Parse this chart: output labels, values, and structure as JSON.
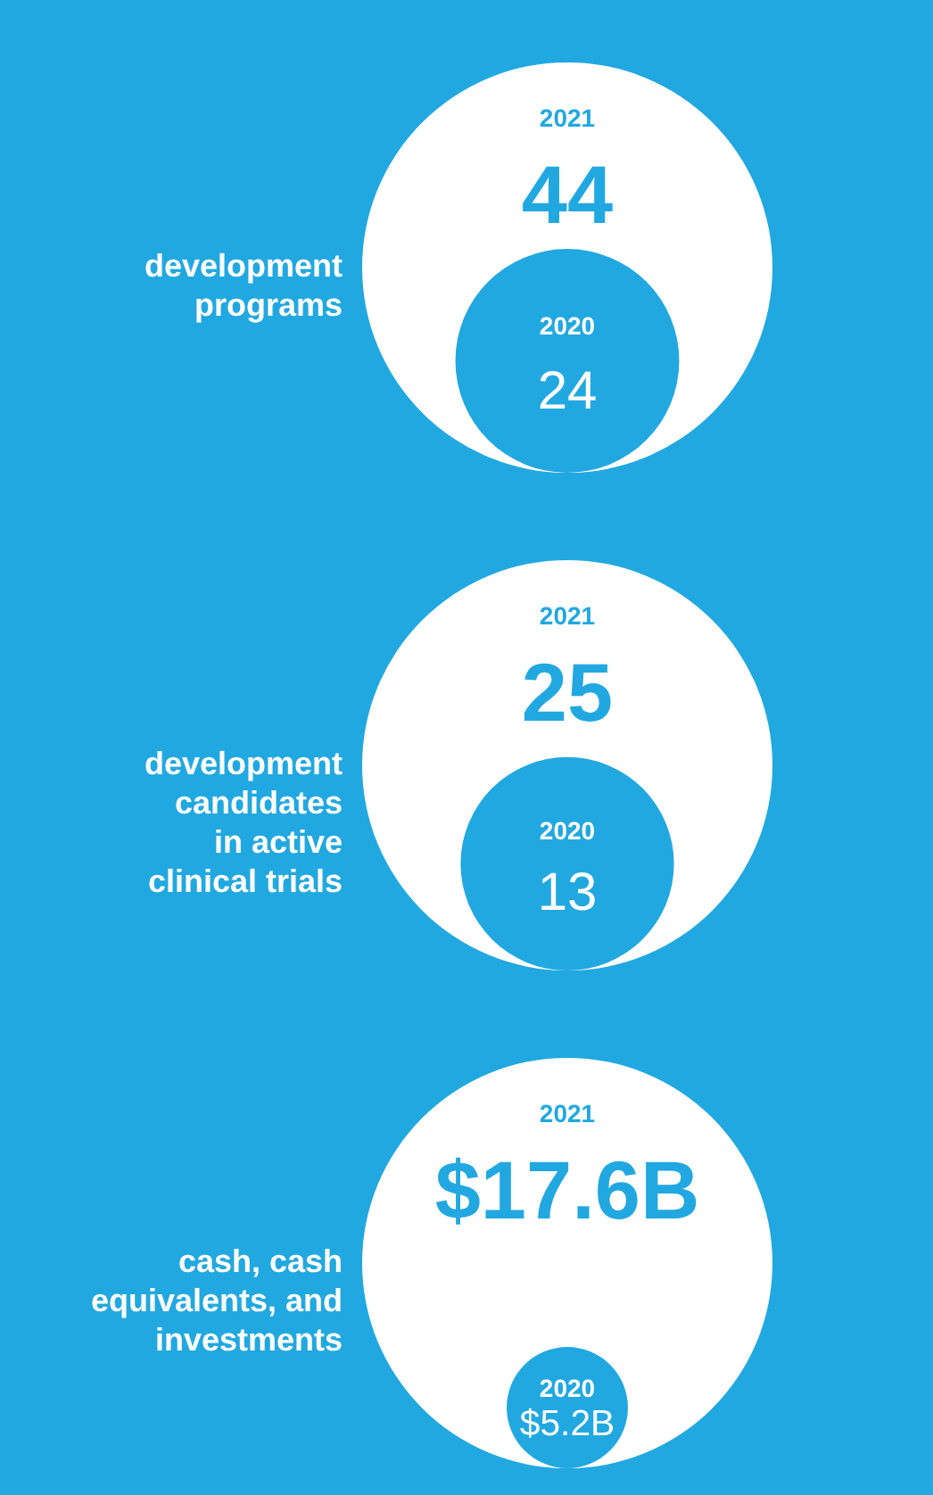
{
  "chart_data": [
    {
      "type": "other",
      "title": "development\nprograms",
      "categories": [
        "2021",
        "2020"
      ],
      "values": [
        44,
        24
      ],
      "colors": [
        "#ffffff",
        "#22a8e0"
      ],
      "data_labels": true
    },
    {
      "type": "other",
      "title": "development\ncandidates\nin active\nclinical trials",
      "categories": [
        "2021",
        "2020"
      ],
      "values": [
        25,
        13
      ],
      "colors": [
        "#ffffff",
        "#22a8e0"
      ],
      "data_labels": true
    },
    {
      "type": "other",
      "title": "cash, cash\nequivalents, and\ninvestments",
      "categories": [
        "2021",
        "2020"
      ],
      "values": [
        17.6,
        5.2
      ],
      "value_labels": [
        "$17.6B",
        "$5.2B"
      ],
      "colors": [
        "#ffffff",
        "#22a8e0"
      ]
    }
  ]
}
